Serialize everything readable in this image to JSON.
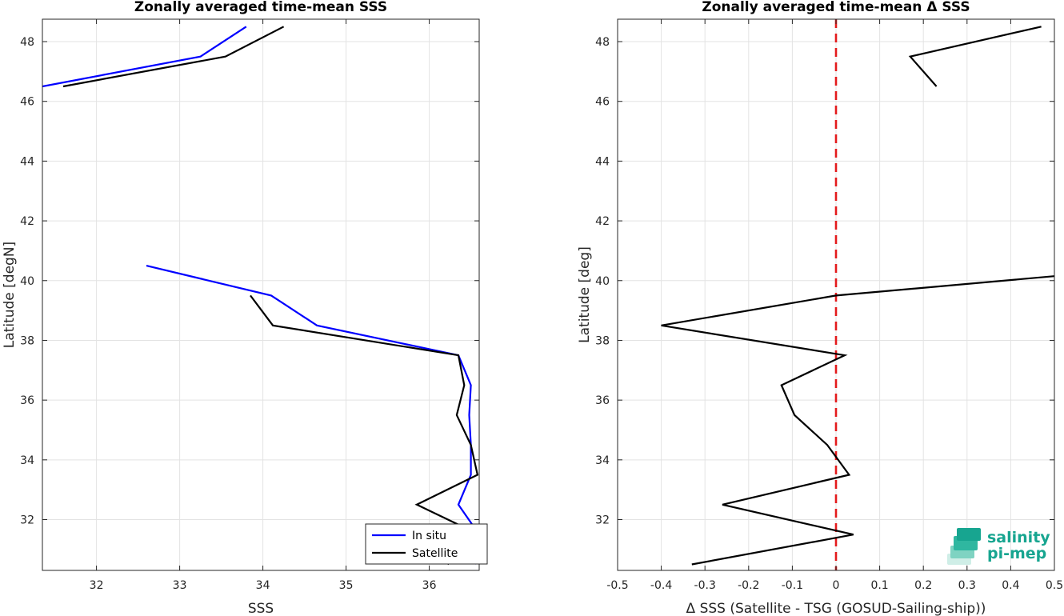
{
  "chart_data": [
    {
      "type": "line",
      "title": "Zonally averaged time-mean SSS",
      "xlabel": "SSS",
      "ylabel": "Latitude [degN]",
      "xlim": [
        31.35,
        36.6
      ],
      "ylim": [
        30.3,
        48.75
      ],
      "xticks": [
        32,
        33,
        34,
        35,
        36
      ],
      "yticks": [
        32,
        34,
        36,
        38,
        40,
        42,
        44,
        46,
        48
      ],
      "grid": true,
      "legend": {
        "location": "bottom-right",
        "entries": [
          "In situ",
          "Satellite"
        ]
      },
      "series": [
        {
          "name": "In situ",
          "color": "#0000ff",
          "segments": [
            [
              [
                31.35,
                46.5
              ],
              [
                33.25,
                47.5
              ],
              [
                33.8,
                48.5
              ]
            ],
            [
              [
                32.6,
                40.5
              ],
              [
                34.1,
                39.5
              ],
              [
                34.65,
                38.5
              ],
              [
                36.35,
                37.5
              ],
              [
                36.5,
                36.5
              ],
              [
                36.48,
                35.5
              ],
              [
                36.5,
                34.5
              ],
              [
                36.5,
                33.5
              ],
              [
                36.35,
                32.5
              ],
              [
                36.6,
                31.5
              ],
              [
                36.55,
                30.5
              ]
            ]
          ]
        },
        {
          "name": "Satellite",
          "color": "#000000",
          "segments": [
            [
              [
                31.6,
                46.5
              ],
              [
                33.55,
                47.5
              ],
              [
                34.25,
                48.5
              ]
            ],
            [
              [
                33.85,
                39.5
              ],
              [
                34.12,
                38.5
              ],
              [
                36.35,
                37.5
              ],
              [
                36.42,
                36.5
              ],
              [
                36.33,
                35.5
              ],
              [
                36.5,
                34.5
              ],
              [
                36.58,
                33.5
              ],
              [
                35.85,
                32.5
              ],
              [
                36.6,
                31.5
              ],
              [
                36.22,
                30.5
              ]
            ]
          ]
        }
      ]
    },
    {
      "type": "line",
      "title": "Zonally averaged time-mean Δ SSS",
      "xlabel": "Δ SSS (Satellite - TSG (GOSUD-Sailing-ship))",
      "ylabel": "Latitude [deg]",
      "xlim": [
        -0.5,
        0.5
      ],
      "ylim": [
        30.3,
        48.75
      ],
      "xticks": [
        -0.5,
        -0.4,
        -0.3,
        -0.2,
        -0.1,
        0,
        0.1,
        0.2,
        0.3,
        0.4,
        0.5
      ],
      "xticklabels": [
        "-0.5",
        "-0.4",
        "-0.3",
        "-0.2",
        "-0.1",
        "0",
        "0.1",
        "0.2",
        "0.3",
        "0.4",
        "0.5"
      ],
      "yticks": [
        32,
        34,
        36,
        38,
        40,
        42,
        44,
        46,
        48
      ],
      "grid": true,
      "zero_line": {
        "x": 0,
        "color": "#e31a1c",
        "style": "dashed"
      },
      "series": [
        {
          "color": "#000000",
          "segments": [
            [
              [
                0.23,
                46.5
              ],
              [
                0.17,
                47.5
              ],
              [
                0.47,
                48.5
              ]
            ],
            [
              [
                0.5,
                40.15
              ],
              [
                0.0,
                39.5
              ],
              [
                -0.4,
                38.5
              ],
              [
                0.02,
                37.5
              ],
              [
                -0.125,
                36.5
              ],
              [
                -0.095,
                35.5
              ],
              [
                -0.02,
                34.5
              ],
              [
                0.03,
                33.5
              ],
              [
                -0.26,
                32.5
              ],
              [
                0.04,
                31.5
              ],
              [
                -0.33,
                30.5
              ]
            ]
          ]
        }
      ]
    }
  ],
  "logo": {
    "line1": "salinity",
    "line2": "pi-mep",
    "color": "#17a590"
  }
}
